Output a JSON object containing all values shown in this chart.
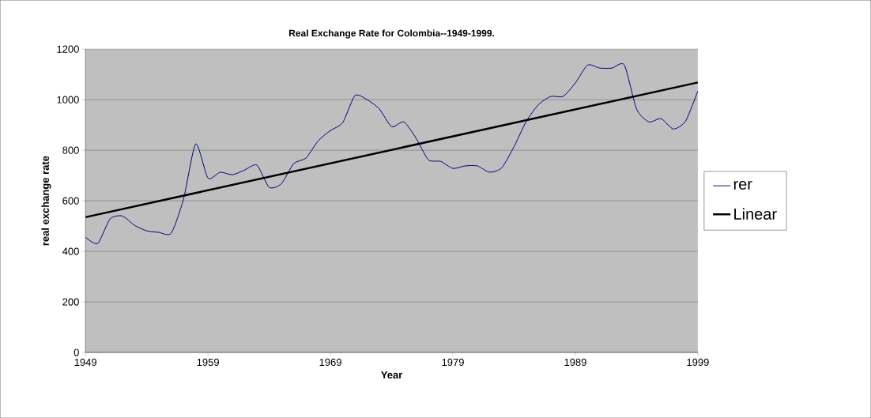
{
  "chart_data": {
    "type": "line",
    "title": "Real Exchange Rate for Colombia--1949-1999.",
    "xlabel": "Year",
    "ylabel": "real exchange rate",
    "xlim": [
      1949,
      1999
    ],
    "xticks": [
      1949,
      1959,
      1969,
      1979,
      1989,
      1999
    ],
    "ylim": [
      0,
      1200
    ],
    "yticks": [
      0,
      200,
      400,
      600,
      800,
      1000,
      1200
    ],
    "grid": "y",
    "legend": "right",
    "series": [
      {
        "name": "rer",
        "color": "#000080",
        "x": [
          1949,
          1950,
          1951,
          1952,
          1953,
          1954,
          1955,
          1956,
          1957,
          1958,
          1959,
          1960,
          1961,
          1962,
          1963,
          1964,
          1965,
          1966,
          1967,
          1968,
          1969,
          1970,
          1971,
          1972,
          1973,
          1974,
          1975,
          1976,
          1977,
          1978,
          1979,
          1980,
          1981,
          1982,
          1983,
          1984,
          1985,
          1986,
          1987,
          1988,
          1989,
          1990,
          1991,
          1992,
          1993,
          1994,
          1995,
          1996,
          1997,
          1998,
          1999
        ],
        "values": [
          456,
          431,
          528,
          540,
          503,
          481,
          475,
          472,
          606,
          825,
          690,
          713,
          703,
          722,
          741,
          653,
          668,
          747,
          769,
          837,
          878,
          909,
          1016,
          1000,
          963,
          893,
          912,
          847,
          762,
          756,
          728,
          738,
          738,
          713,
          731,
          815,
          915,
          981,
          1013,
          1013,
          1066,
          1137,
          1125,
          1125,
          1137,
          963,
          912,
          925,
          884,
          915,
          1034
        ]
      },
      {
        "name": "Linear",
        "color": "#000000",
        "x": [
          1949,
          1999
        ],
        "values": [
          535,
          1068
        ]
      }
    ]
  }
}
